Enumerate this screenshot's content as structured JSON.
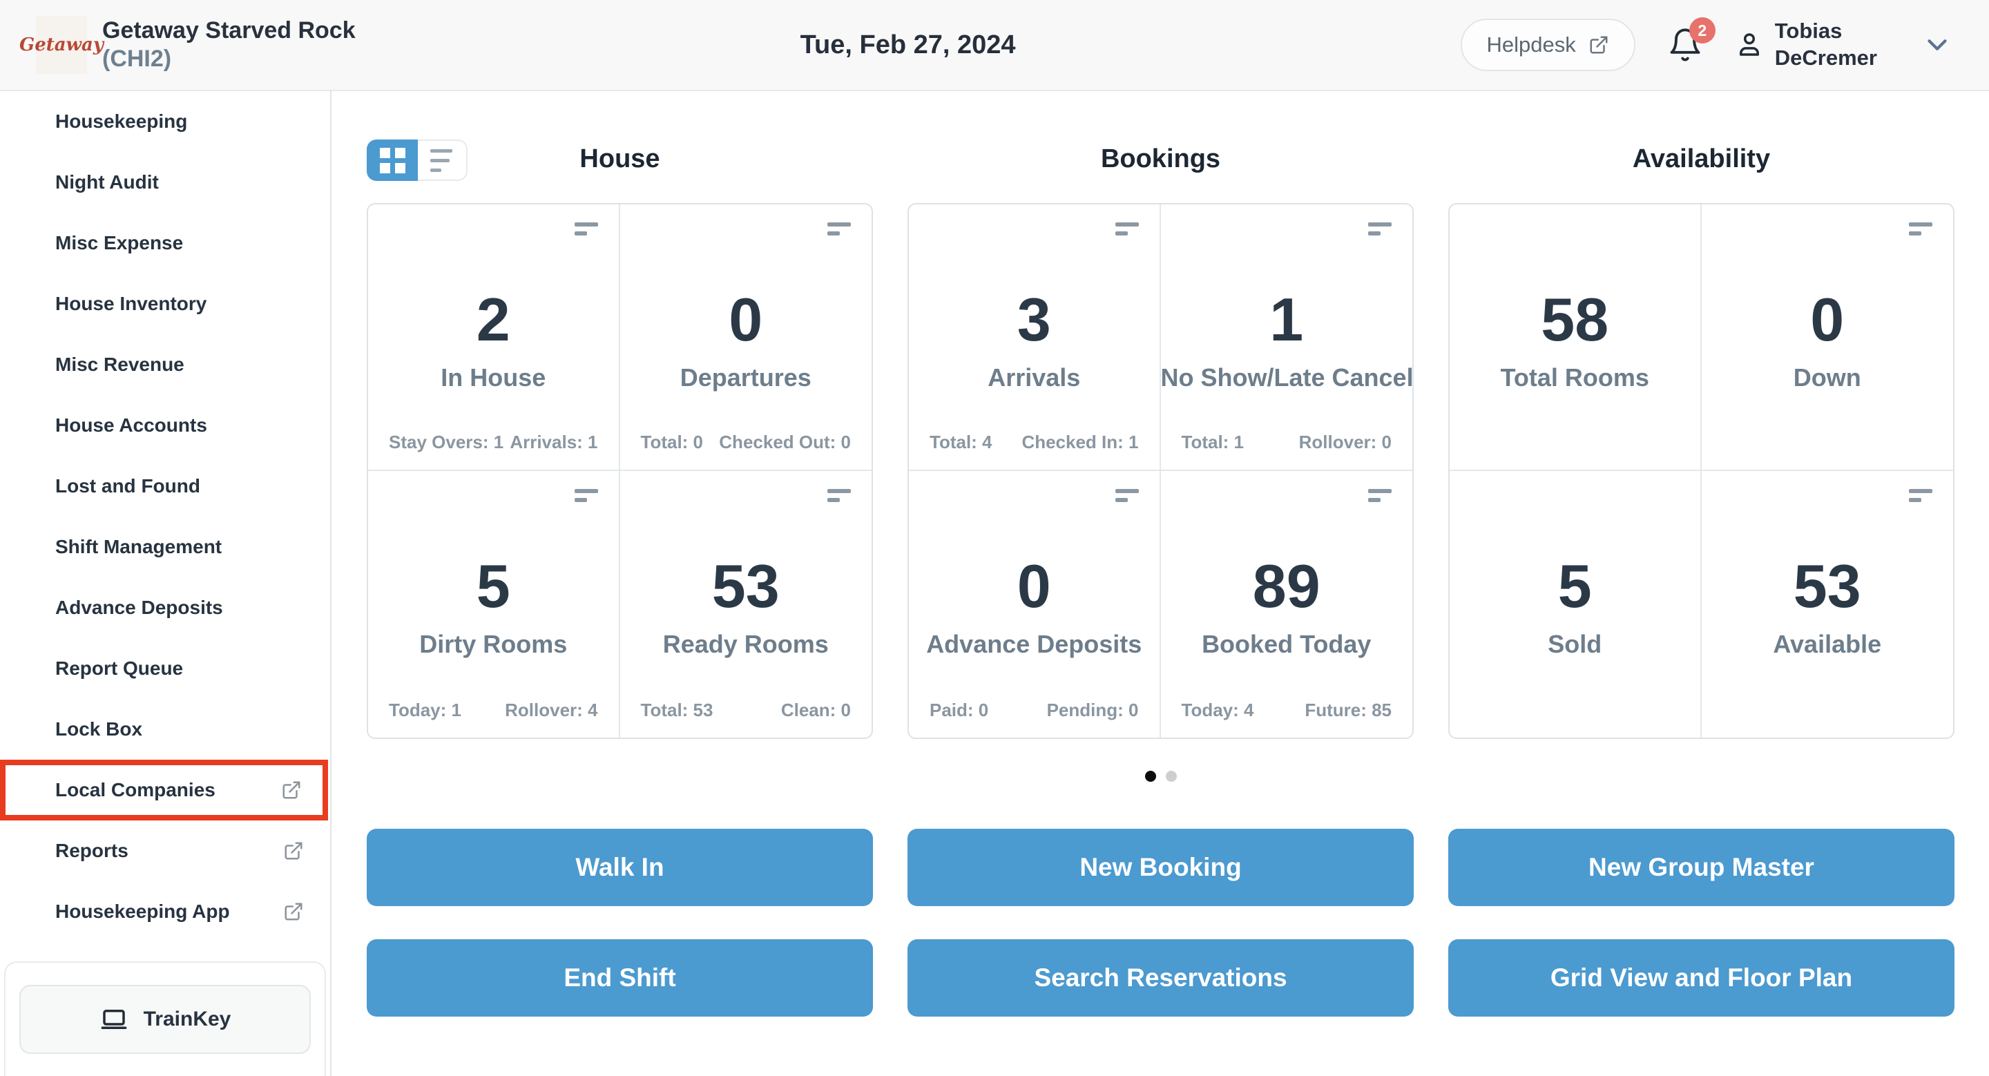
{
  "header": {
    "logo_text": "Getaway",
    "property_name": "Getaway Starved Rock",
    "property_code": "(CHI2)",
    "date": "Tue, Feb 27, 2024",
    "helpdesk_label": "Helpdesk",
    "notification_count": "2",
    "user_name_line1": "Tobias",
    "user_name_line2": "DeCremer"
  },
  "sidebar": {
    "items": [
      {
        "label": "Housekeeping",
        "external": false,
        "highlighted": false
      },
      {
        "label": "Night Audit",
        "external": false,
        "highlighted": false
      },
      {
        "label": "Misc Expense",
        "external": false,
        "highlighted": false
      },
      {
        "label": "House Inventory",
        "external": false,
        "highlighted": false
      },
      {
        "label": "Misc Revenue",
        "external": false,
        "highlighted": false
      },
      {
        "label": "House Accounts",
        "external": false,
        "highlighted": false
      },
      {
        "label": "Lost and Found",
        "external": false,
        "highlighted": false
      },
      {
        "label": "Shift Management",
        "external": false,
        "highlighted": false
      },
      {
        "label": "Advance Deposits",
        "external": false,
        "highlighted": false
      },
      {
        "label": "Report Queue",
        "external": false,
        "highlighted": false
      },
      {
        "label": "Lock Box",
        "external": false,
        "highlighted": false
      },
      {
        "label": "Local Companies",
        "external": true,
        "highlighted": true
      },
      {
        "label": "Reports",
        "external": true,
        "highlighted": false
      },
      {
        "label": "Housekeeping App",
        "external": true,
        "highlighted": false
      }
    ],
    "trainkey_label": "TrainKey"
  },
  "view_toggle": {
    "active": "grid"
  },
  "sections": [
    {
      "title": "House",
      "cards": [
        {
          "value": "2",
          "label": "In House",
          "icon": true,
          "stats": [
            "Stay Overs: 1",
            "Arrivals: 1"
          ]
        },
        {
          "value": "0",
          "label": "Departures",
          "icon": true,
          "stats": [
            "Total: 0",
            "Checked Out: 0"
          ]
        },
        {
          "value": "5",
          "label": "Dirty Rooms",
          "icon": true,
          "stats": [
            "Today: 1",
            "Rollover: 4"
          ]
        },
        {
          "value": "53",
          "label": "Ready Rooms",
          "icon": true,
          "stats": [
            "Total: 53",
            "Clean: 0"
          ]
        }
      ]
    },
    {
      "title": "Bookings",
      "cards": [
        {
          "value": "3",
          "label": "Arrivals",
          "icon": true,
          "stats": [
            "Total: 4",
            "Checked In: 1"
          ]
        },
        {
          "value": "1",
          "label": "No Show/Late Cancel",
          "icon": true,
          "stats": [
            "Total: 1",
            "Rollover: 0"
          ]
        },
        {
          "value": "0",
          "label": "Advance Deposits",
          "icon": true,
          "stats": [
            "Paid: 0",
            "Pending: 0"
          ]
        },
        {
          "value": "89",
          "label": "Booked Today",
          "icon": true,
          "stats": [
            "Today: 4",
            "Future: 85"
          ]
        }
      ]
    },
    {
      "title": "Availability",
      "cards": [
        {
          "value": "58",
          "label": "Total Rooms",
          "icon": false,
          "stats": []
        },
        {
          "value": "0",
          "label": "Down",
          "icon": true,
          "stats": []
        },
        {
          "value": "5",
          "label": "Sold",
          "icon": false,
          "stats": []
        },
        {
          "value": "53",
          "label": "Available",
          "icon": true,
          "stats": []
        }
      ]
    }
  ],
  "pagination": {
    "dots": 2,
    "active_index": 0
  },
  "actions": [
    {
      "label": "Walk In"
    },
    {
      "label": "New Booking"
    },
    {
      "label": "New Group Master"
    },
    {
      "label": "End Shift"
    },
    {
      "label": "Search Reservations"
    },
    {
      "label": "Grid View and Floor Plan"
    }
  ],
  "colors": {
    "accent_blue": "#4b9ad0",
    "highlight_red": "#e83c21",
    "badge_red": "#e7726b",
    "logo_red": "#b84936"
  }
}
